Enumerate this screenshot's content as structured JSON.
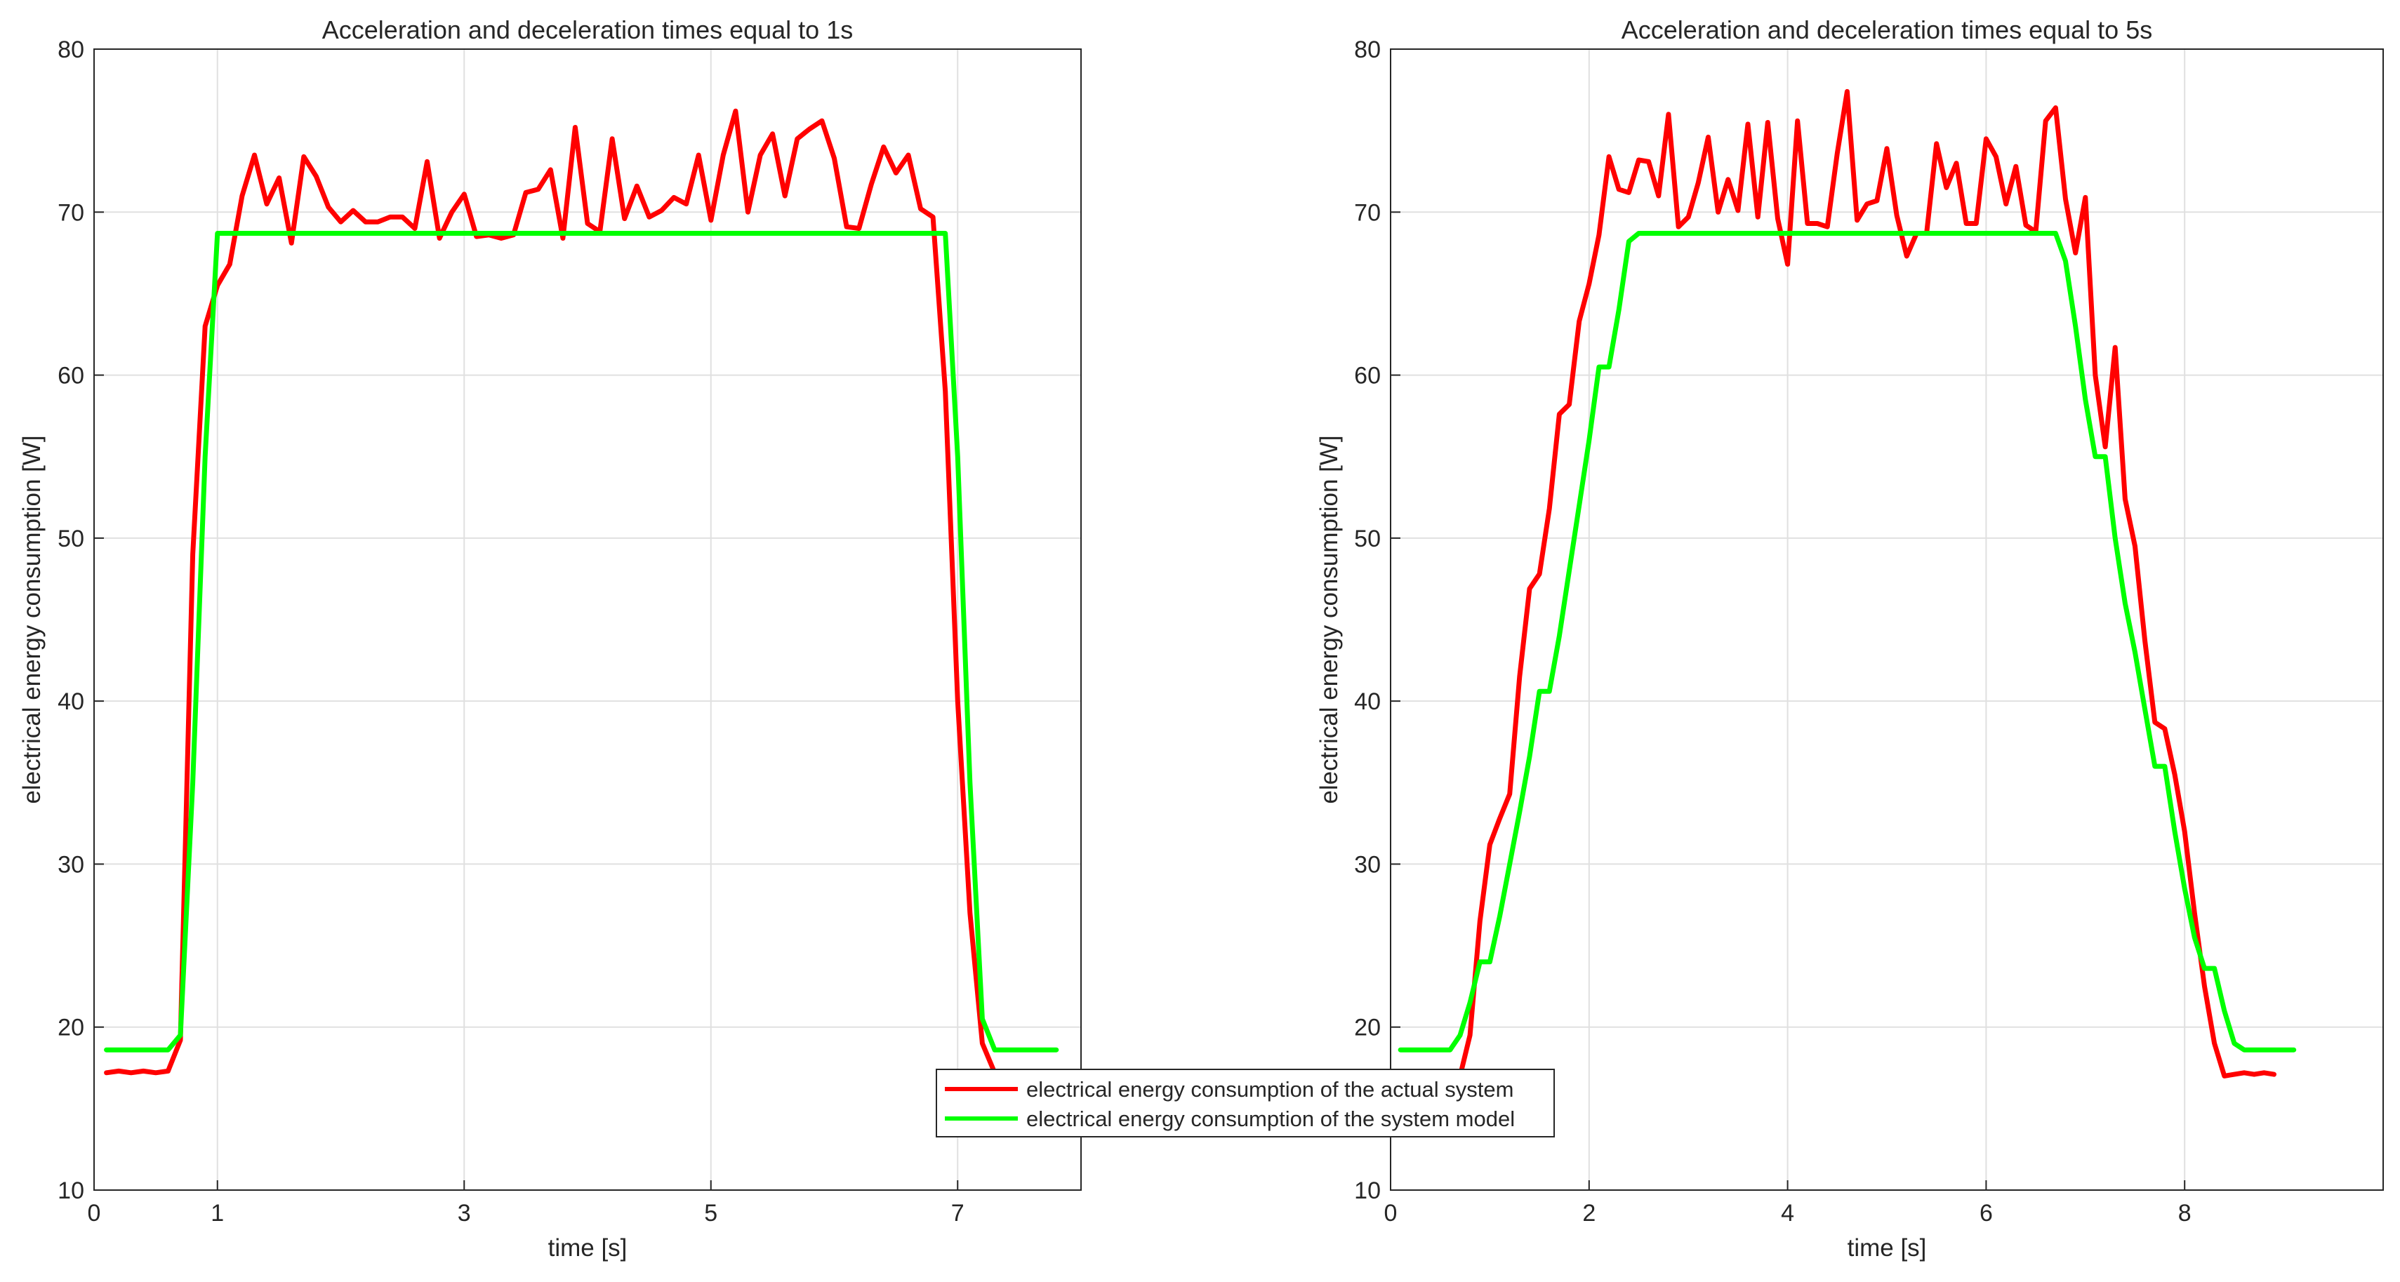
{
  "colors": {
    "actual": "#ff0000",
    "model": "#00ff00",
    "grid": "#e0e0e0",
    "axis": "#262626"
  },
  "legend": {
    "placement": "center-bottom",
    "entries": [
      {
        "label": "electrical energy consumption of the actual system",
        "color": "#ff0000"
      },
      {
        "label": "electrical energy consumption of the system model",
        "color": "#00ff00"
      }
    ]
  },
  "chart_data": [
    {
      "type": "line",
      "title": "Acceleration and deceleration times equal to 1s",
      "xlabel": "time [s]",
      "ylabel": "electrical energy consumption [W]",
      "xlim": [
        0,
        8
      ],
      "ylim": [
        10,
        80
      ],
      "xticks": [
        0,
        1,
        3,
        5,
        7
      ],
      "yticks": [
        10,
        20,
        30,
        40,
        50,
        60,
        70,
        80
      ],
      "grid": true,
      "series": [
        {
          "name": "electrical energy consumption of the actual system",
          "color": "#ff0000",
          "x": [
            0.1,
            0.2,
            0.3,
            0.4,
            0.5,
            0.6,
            0.7,
            0.8,
            0.9,
            1.0,
            1.1,
            1.2,
            1.3,
            1.4,
            1.5,
            1.6,
            1.7,
            1.8,
            1.9,
            2.0,
            2.1,
            2.2,
            2.3,
            2.4,
            2.5,
            2.6,
            2.7,
            2.8,
            2.9,
            3.0,
            3.1,
            3.2,
            3.3,
            3.4,
            3.5,
            3.6,
            3.7,
            3.8,
            3.9,
            4.0,
            4.1,
            4.2,
            4.3,
            4.4,
            4.5,
            4.6,
            4.7,
            4.8,
            4.9,
            5.0,
            5.1,
            5.2,
            5.3,
            5.4,
            5.5,
            5.6,
            5.7,
            5.8,
            5.9,
            6.0,
            6.1,
            6.2,
            6.3,
            6.4,
            6.5,
            6.6,
            6.7,
            6.8,
            6.9,
            7.0,
            7.1,
            7.2,
            7.3
          ],
          "values": [
            17.2,
            17.3,
            17.2,
            17.3,
            17.2,
            17.3,
            19.2,
            49.0,
            63.0,
            65.5,
            66.8,
            71.0,
            73.5,
            70.5,
            72.1,
            68.1,
            73.4,
            72.2,
            70.3,
            69.4,
            70.1,
            69.4,
            69.4,
            69.7,
            69.7,
            69.0,
            73.1,
            68.4,
            70.0,
            71.1,
            68.5,
            68.6,
            68.4,
            68.6,
            71.2,
            71.4,
            72.6,
            68.4,
            75.2,
            69.3,
            68.8,
            74.5,
            69.6,
            71.6,
            69.7,
            70.1,
            70.9,
            70.5,
            73.5,
            69.5,
            73.5,
            76.2,
            70.0,
            73.5,
            74.8,
            71.0,
            74.5,
            75.1,
            75.6,
            73.3,
            69.1,
            69.0,
            71.7,
            74.0,
            72.4,
            73.5,
            70.2,
            69.7,
            59.0,
            40.0,
            27.0,
            19.0,
            17.2
          ]
        },
        {
          "name": "electrical energy consumption of the system model",
          "color": "#00ff00",
          "x": [
            0.1,
            0.6,
            0.7,
            0.8,
            0.9,
            1.0,
            6.9,
            7.0,
            7.1,
            7.2,
            7.3,
            7.8
          ],
          "values": [
            18.6,
            18.6,
            19.5,
            35.0,
            55.0,
            68.7,
            68.7,
            55.0,
            35.0,
            20.5,
            18.6,
            18.6
          ]
        }
      ]
    },
    {
      "type": "line",
      "title": "Acceleration and deceleration times equal to 5s",
      "xlabel": "time [s]",
      "ylabel": "electrical energy consumption [W]",
      "xlim": [
        0,
        10
      ],
      "ylim": [
        10,
        80
      ],
      "xticks": [
        0,
        2,
        4,
        6,
        8
      ],
      "yticks": [
        10,
        20,
        30,
        40,
        50,
        60,
        70,
        80
      ],
      "grid": true,
      "series": [
        {
          "name": "electrical energy consumption of the actual system",
          "color": "#ff0000",
          "x": [
            0.7,
            0.8,
            0.9,
            1.0,
            1.1,
            1.2,
            1.3,
            1.4,
            1.5,
            1.6,
            1.7,
            1.8,
            1.9,
            2.0,
            2.1,
            2.2,
            2.3,
            2.4,
            2.5,
            2.6,
            2.7,
            2.8,
            2.9,
            3.0,
            3.1,
            3.2,
            3.3,
            3.4,
            3.5,
            3.6,
            3.7,
            3.8,
            3.9,
            4.0,
            4.1,
            4.2,
            4.3,
            4.4,
            4.5,
            4.6,
            4.7,
            4.8,
            4.9,
            5.0,
            5.1,
            5.2,
            5.3,
            5.4,
            5.5,
            5.6,
            5.7,
            5.8,
            5.9,
            6.0,
            6.1,
            6.2,
            6.3,
            6.4,
            6.5,
            6.6,
            6.7,
            6.8,
            6.9,
            7.0,
            7.1,
            7.2,
            7.3,
            7.4,
            7.5,
            7.6,
            7.7,
            7.8,
            7.9,
            8.0,
            8.1,
            8.2,
            8.3,
            8.4,
            8.5,
            8.6,
            8.7,
            8.8,
            8.9
          ],
          "values": [
            17.0,
            19.5,
            26.5,
            31.2,
            32.8,
            34.3,
            41.5,
            46.9,
            47.8,
            51.8,
            57.6,
            58.2,
            63.3,
            65.6,
            68.6,
            73.4,
            71.4,
            71.2,
            73.2,
            73.1,
            71.0,
            76.0,
            69.1,
            69.7,
            71.8,
            74.6,
            70.0,
            72.0,
            70.1,
            75.4,
            69.7,
            75.5,
            69.6,
            66.8,
            75.6,
            69.3,
            69.3,
            69.1,
            73.6,
            77.4,
            69.5,
            70.5,
            70.7,
            73.9,
            69.8,
            67.3,
            68.7,
            68.7,
            74.2,
            71.5,
            73.0,
            69.3,
            69.3,
            74.5,
            73.4,
            70.5,
            72.8,
            69.2,
            68.8,
            75.6,
            76.4,
            70.8,
            67.5,
            70.9,
            60.0,
            55.6,
            61.7,
            52.4,
            49.5,
            43.7,
            38.7,
            38.3,
            35.5,
            32.0,
            27.0,
            22.5,
            19.0,
            17.0,
            17.1,
            17.2,
            17.1,
            17.2,
            17.1
          ]
        },
        {
          "name": "electrical energy consumption of the system model",
          "color": "#00ff00",
          "x": [
            0.1,
            0.6,
            0.7,
            0.8,
            0.9,
            1.0,
            1.1,
            1.2,
            1.3,
            1.4,
            1.5,
            1.6,
            1.7,
            1.8,
            1.9,
            2.0,
            2.1,
            2.2,
            2.3,
            2.4,
            2.5,
            6.7,
            6.8,
            6.9,
            7.0,
            7.1,
            7.2,
            7.3,
            7.4,
            7.5,
            7.6,
            7.7,
            7.8,
            7.9,
            8.0,
            8.1,
            8.2,
            8.3,
            8.4,
            8.5,
            8.6,
            9.1
          ],
          "values": [
            18.6,
            18.6,
            19.5,
            21.5,
            24.0,
            24.0,
            26.8,
            30.0,
            33.2,
            36.6,
            40.6,
            40.6,
            44.0,
            48.0,
            52.0,
            56.0,
            60.5,
            60.5,
            64.0,
            68.2,
            68.7,
            68.7,
            67.0,
            63.0,
            58.5,
            55.0,
            55.0,
            50.0,
            46.0,
            43.0,
            39.5,
            36.0,
            36.0,
            32.0,
            28.5,
            25.5,
            23.6,
            23.6,
            21.0,
            19.0,
            18.6,
            18.6
          ]
        }
      ]
    }
  ]
}
